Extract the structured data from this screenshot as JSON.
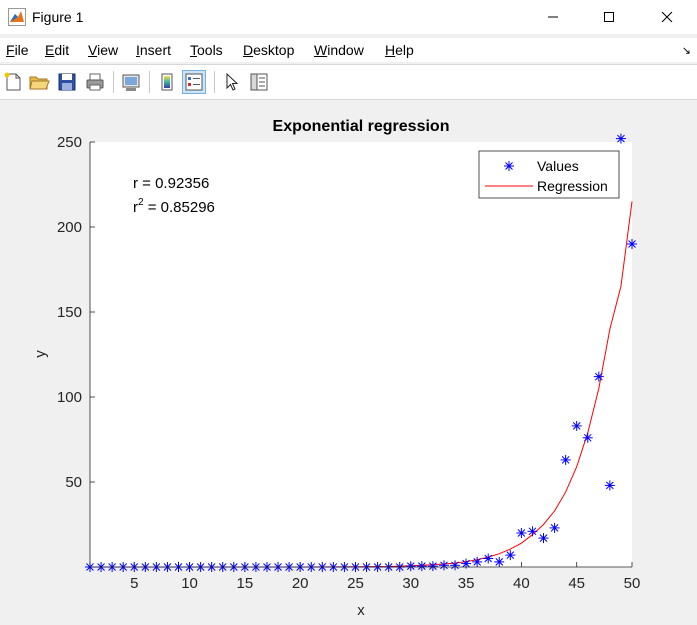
{
  "window": {
    "title": "Figure 1"
  },
  "menu": [
    {
      "label": "File",
      "key": "F",
      "rest": "ile"
    },
    {
      "label": "Edit",
      "key": "E",
      "rest": "dit"
    },
    {
      "label": "View",
      "key": "V",
      "rest": "iew"
    },
    {
      "label": "Insert",
      "key": "I",
      "rest": "nsert"
    },
    {
      "label": "Tools",
      "key": "T",
      "rest": "ools"
    },
    {
      "label": "Desktop",
      "key": "D",
      "rest": "esktop"
    },
    {
      "label": "Window",
      "key": "W",
      "rest": "indow"
    },
    {
      "label": "Help",
      "key": "H",
      "rest": "elp"
    }
  ],
  "toolbar_icons": [
    "new-figure-icon",
    "open-file-icon",
    "save-icon",
    "print-icon",
    "link-plot-icon",
    "insert-colorbar-icon",
    "insert-legend-icon",
    "edit-plot-icon",
    "property-inspector-icon"
  ],
  "chart_data": {
    "type": "scatter",
    "title": "Exponential regression",
    "xlabel": "x",
    "ylabel": "y",
    "xlim": [
      1,
      50
    ],
    "ylim": [
      0,
      250
    ],
    "xticks": [
      5,
      10,
      15,
      20,
      25,
      30,
      35,
      40,
      45,
      50
    ],
    "yticks": [
      50,
      100,
      150,
      200,
      250
    ],
    "annotations": {
      "r": "r = 0.92356",
      "r2_prefix": "r",
      "r2_sup": "2",
      "r2_value": " = 0.85296"
    },
    "legend": {
      "position": "top-right",
      "entries": [
        "Values",
        "Regression"
      ]
    },
    "series": [
      {
        "name": "Values",
        "marker": "*",
        "color": "#0000ff",
        "x": [
          1,
          2,
          3,
          4,
          5,
          6,
          7,
          8,
          9,
          10,
          11,
          12,
          13,
          14,
          15,
          16,
          17,
          18,
          19,
          20,
          21,
          22,
          23,
          24,
          25,
          26,
          27,
          28,
          29,
          30,
          31,
          32,
          33,
          34,
          35,
          36,
          37,
          38,
          39,
          40,
          41,
          42,
          43,
          44,
          45,
          46,
          47,
          48,
          49,
          50
        ],
        "y": [
          0,
          0,
          0,
          0,
          0,
          0,
          0,
          0,
          0,
          0,
          0,
          0,
          0,
          0,
          0,
          0,
          0,
          0,
          0,
          0,
          0,
          0,
          0,
          0,
          0,
          0,
          0,
          0,
          0,
          0.5,
          0.5,
          0.5,
          1,
          1,
          2,
          3,
          5,
          3,
          7,
          20,
          21,
          17,
          23,
          63,
          83,
          76,
          112,
          48,
          252,
          190
        ]
      },
      {
        "name": "Regression",
        "line": true,
        "color": "#ff0000",
        "x": [
          1,
          5,
          10,
          15,
          20,
          25,
          28,
          30,
          32,
          34,
          35,
          36,
          37,
          38,
          39,
          40,
          41,
          42,
          43,
          44,
          45,
          46,
          47,
          48,
          49,
          50
        ],
        "y": [
          0,
          0,
          0,
          0,
          0,
          0.1,
          0.3,
          0.7,
          1.3,
          2.3,
          3.2,
          4.3,
          5.8,
          7.8,
          10.5,
          14,
          19,
          25,
          33,
          44,
          59,
          79,
          105,
          140,
          165,
          215
        ]
      }
    ]
  }
}
